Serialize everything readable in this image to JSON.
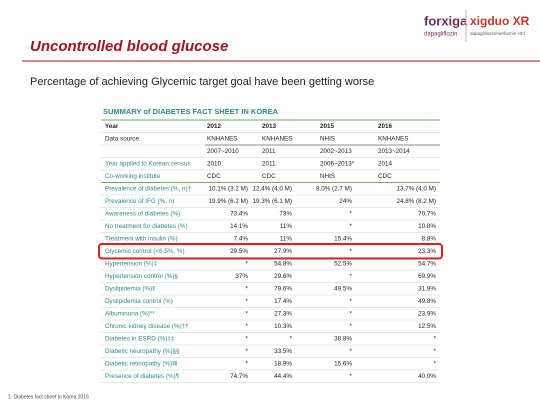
{
  "header": {
    "title": "Uncontrolled blood glucose",
    "logo_left": "forxiga",
    "logo_left_sub": "dapagliflozin",
    "logo_right": "xigduo XR",
    "logo_right_sub": "dapagliflozin/metformin HCl"
  },
  "subtitle": "Percentage of achieving Glycemic target goal have been getting worse",
  "table": {
    "title": "SUMMARY of DIABETES FACT SHEET IN KOREA",
    "rows": [
      [
        "Year",
        "2012",
        "2013",
        "2015",
        "2016"
      ],
      [
        "Data source",
        "KNHANES",
        "KNHANES",
        "NHIS",
        "KNHANES"
      ],
      [
        null,
        "2007~2010",
        "2011",
        "2002~2013",
        "2013~2014"
      ],
      [
        "Year applied to Korean census",
        "2010",
        "2011",
        "2006~2013*",
        "2014"
      ],
      [
        "Co-working institute",
        "CDC",
        "CDC",
        "NHIS",
        "CDC"
      ],
      [
        "Prevalence of diabetes (%, n)†",
        "10.1% (3.2 M)",
        "12.4% (4.0 M)",
        "8.0% (2.7 M)",
        "13.7% (4.0 M)"
      ],
      [
        "Prevalence of IFG (%, n)",
        "19.9% (6.2 M)",
        "19.3% (6.1 M)",
        "24%",
        "24.8% (8.2 M)"
      ],
      [
        "Awareness of diabetes (%)",
        "73.4%",
        "73%",
        "*",
        "70.7%"
      ],
      [
        "No treatment for diabetes (%)",
        "14.1%",
        "11%",
        "*",
        "10.8%"
      ],
      [
        "Treatment with insulin (%)",
        "7.4%",
        "11%",
        "15.4%",
        "8.8%"
      ],
      [
        "Glycemic control (<6.5%, %)",
        "29.5%",
        "27.9%",
        "*",
        "23.3%"
      ],
      [
        "Hypertension (%)‡",
        "*",
        "54.8%",
        "52.5%",
        "54.7%"
      ],
      [
        "Hypertension control (%)§",
        "37%",
        "29.6%",
        "*",
        "69.9%"
      ],
      [
        "Dyslipidemia (%)‖",
        "*",
        "79.6%",
        "49.5%",
        "31.9%"
      ],
      [
        "Dyslipidemia control (%)",
        "*",
        "17.4%",
        "*",
        "49.8%"
      ],
      [
        "Albuminuria (%)**",
        "*",
        "27.3%",
        "*",
        "23.9%"
      ],
      [
        "Chronic kidney disease (%)††",
        "*",
        "10.3%",
        "*",
        "12.5%"
      ],
      [
        "Diabetes in ESRD (%)‡‡",
        "*",
        "*",
        "38.8%",
        "*"
      ],
      [
        "Diabetic neuropathy (%)§§",
        "*",
        "33.5%",
        "*",
        "*"
      ],
      [
        "Diabetic retinopathy (%)‖‖",
        "*",
        "18.9%",
        "15.6%",
        "*"
      ],
      [
        "Presence of diabetes (%)¶",
        "74.7%",
        "44.4%",
        "*",
        "40.0%"
      ]
    ]
  },
  "footnote": "1. Diabetes fact sheet in Korea 2016"
}
